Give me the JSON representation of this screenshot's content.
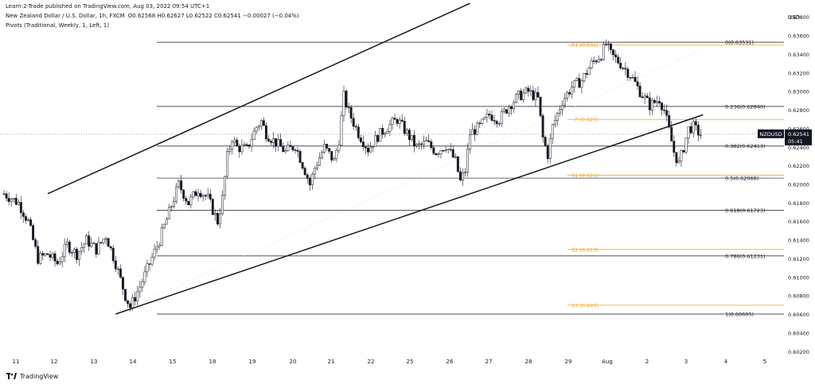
{
  "header": {
    "publisher": "Learn-2-Trade published on TradingView.com, Aug 03, 2022 09:54 UTC+1",
    "symbol": "New Zealand Dollar / U.S. Dollar, 1h, FXCM",
    "ohlc": "O0.62568 H0.62627 L0.62522 C0.62541 −0.00027 (−0.04%)",
    "indicator": "Pivots (Traditional, Weekly, 1, Left, 1)"
  },
  "footer": {
    "brand": "TradingView"
  },
  "chart_data": {
    "type": "candlestick",
    "symbol": "NZDUSD",
    "currency": "USD",
    "last_price": "0.62541",
    "countdown": "05:41",
    "y_ticks": [
      "0.63800",
      "0.63600",
      "0.63400",
      "0.63200",
      "0.63000",
      "0.62800",
      "0.62600",
      "0.62400",
      "0.62200",
      "0.62000",
      "0.61800",
      "0.61600",
      "0.61400",
      "0.61200",
      "0.61000",
      "0.60800",
      "0.60600",
      "0.60400",
      "0.60200"
    ],
    "ylim": [
      0.6016,
      0.639
    ],
    "x_ticks": [
      "11",
      "12",
      "13",
      "14",
      "15",
      "18",
      "19",
      "20",
      "21",
      "22",
      "25",
      "26",
      "27",
      "28",
      "29",
      "Aug",
      "2",
      "3",
      "4",
      "5"
    ],
    "price_path": [
      [
        0,
        0.619
      ],
      [
        3,
        0.618
      ],
      [
        5,
        0.616
      ],
      [
        7,
        0.612
      ],
      [
        9,
        0.6125
      ],
      [
        11,
        0.6115
      ],
      [
        13,
        0.6135
      ],
      [
        15,
        0.6125
      ],
      [
        17,
        0.614
      ],
      [
        19,
        0.613
      ],
      [
        21,
        0.6145
      ],
      [
        23,
        0.6115
      ],
      [
        25,
        0.608
      ],
      [
        26,
        0.6068
      ],
      [
        28,
        0.609
      ],
      [
        30,
        0.6115
      ],
      [
        32,
        0.614
      ],
      [
        34,
        0.617
      ],
      [
        36,
        0.62
      ],
      [
        38,
        0.618
      ],
      [
        40,
        0.6195
      ],
      [
        42,
        0.6185
      ],
      [
        44,
        0.616
      ],
      [
        45,
        0.6185
      ],
      [
        46,
        0.623
      ],
      [
        47,
        0.625
      ],
      [
        48,
        0.624
      ],
      [
        50,
        0.6238
      ],
      [
        52,
        0.6262
      ],
      [
        53,
        0.6268
      ],
      [
        54,
        0.6255
      ],
      [
        56,
        0.6245
      ],
      [
        58,
        0.6235
      ],
      [
        60,
        0.6242
      ],
      [
        62,
        0.6215
      ],
      [
        63,
        0.62
      ],
      [
        64,
        0.6218
      ],
      [
        66,
        0.624
      ],
      [
        68,
        0.6225
      ],
      [
        69,
        0.6248
      ],
      [
        70,
        0.6295
      ],
      [
        71,
        0.6278
      ],
      [
        73,
        0.6255
      ],
      [
        75,
        0.6238
      ],
      [
        77,
        0.6252
      ],
      [
        79,
        0.6262
      ],
      [
        81,
        0.627
      ],
      [
        83,
        0.6255
      ],
      [
        85,
        0.624
      ],
      [
        87,
        0.6245
      ],
      [
        89,
        0.6235
      ],
      [
        91,
        0.6242
      ],
      [
        93,
        0.6225
      ],
      [
        94,
        0.6203
      ],
      [
        95,
        0.6215
      ],
      [
        96,
        0.6255
      ],
      [
        98,
        0.6262
      ],
      [
        100,
        0.6275
      ],
      [
        102,
        0.627
      ],
      [
        104,
        0.6285
      ],
      [
        106,
        0.6295
      ],
      [
        108,
        0.63
      ],
      [
        110,
        0.6292
      ],
      [
        111,
        0.625
      ],
      [
        112,
        0.6232
      ],
      [
        113,
        0.6262
      ],
      [
        115,
        0.629
      ],
      [
        117,
        0.6305
      ],
      [
        119,
        0.6312
      ],
      [
        121,
        0.633
      ],
      [
        123,
        0.634
      ],
      [
        124,
        0.6351
      ],
      [
        125,
        0.634
      ],
      [
        127,
        0.633
      ],
      [
        129,
        0.6318
      ],
      [
        131,
        0.63
      ],
      [
        133,
        0.6285
      ],
      [
        135,
        0.6292
      ],
      [
        136,
        0.628
      ],
      [
        137,
        0.6258
      ],
      [
        138,
        0.6235
      ],
      [
        139,
        0.6222
      ],
      [
        140,
        0.624
      ],
      [
        141,
        0.626
      ],
      [
        142,
        0.6262
      ],
      [
        143,
        0.6256
      ],
      [
        143.5,
        0.6254
      ]
    ],
    "fib_levels": [
      {
        "label": "0(0.63531)",
        "value": 0.63531
      },
      {
        "label": "0.236(0.62840)",
        "value": 0.6284
      },
      {
        "label": "0.382(0.62413)",
        "value": 0.62413
      },
      {
        "label": "0.5(0.62068)",
        "value": 0.62068
      },
      {
        "label": "0.618(0.61723)",
        "value": 0.61723
      },
      {
        "label": "0.786(0.61231)",
        "value": 0.61231
      },
      {
        "label": "1(0.60605)",
        "value": 0.60605
      }
    ],
    "pivots": [
      {
        "label": "R1 (0.635)",
        "value": 0.635
      },
      {
        "label": "P (0.627)",
        "value": 0.627
      },
      {
        "label": "S1 (0.621)",
        "value": 0.621
      },
      {
        "label": "S2 (0.613)",
        "value": 0.613
      },
      {
        "label": "S3 (0.607)",
        "value": 0.607
      }
    ],
    "channel": {
      "upper": [
        [
          9,
          0.619
        ],
        [
          96,
          0.6395
        ]
      ],
      "lower": [
        [
          23,
          0.60605
        ],
        [
          144,
          0.6275
        ]
      ]
    },
    "colors": {
      "candle": "#131722",
      "fib": "#131722",
      "pivot": "#f5a623",
      "badge": "#131722",
      "current_line": "#787b86"
    }
  }
}
